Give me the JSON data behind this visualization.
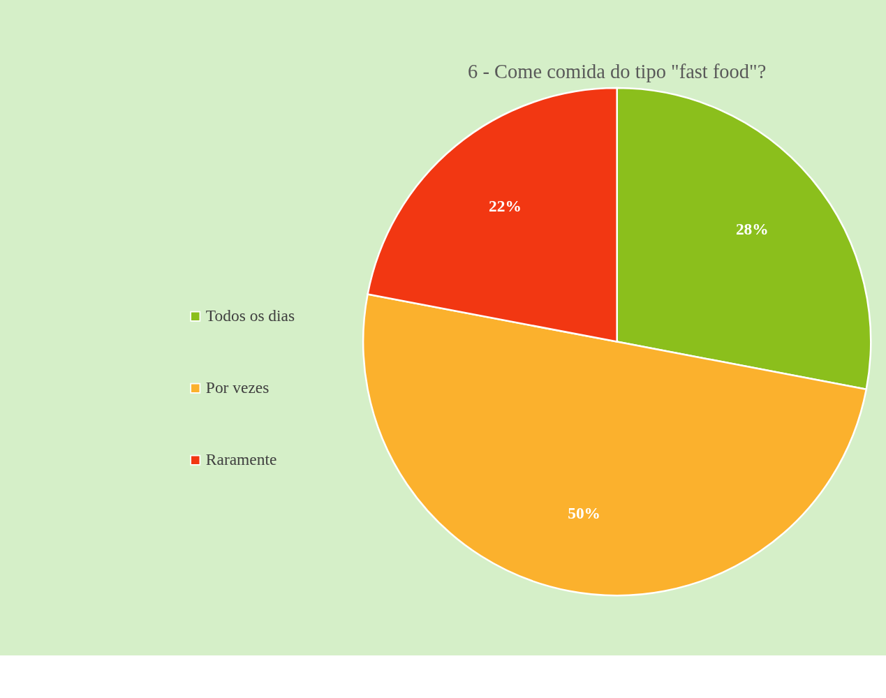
{
  "chart_data": {
    "type": "pie",
    "title": "6 - Come comida do tipo \"fast food\"?",
    "categories": [
      "Todos os dias",
      "Por vezes",
      "Raramente"
    ],
    "values": [
      28,
      50,
      22
    ],
    "colors": [
      "#8bbf1c",
      "#fbb12d",
      "#f23712"
    ],
    "value_labels": [
      "28%",
      "50%",
      "22%"
    ],
    "legend": "left"
  }
}
